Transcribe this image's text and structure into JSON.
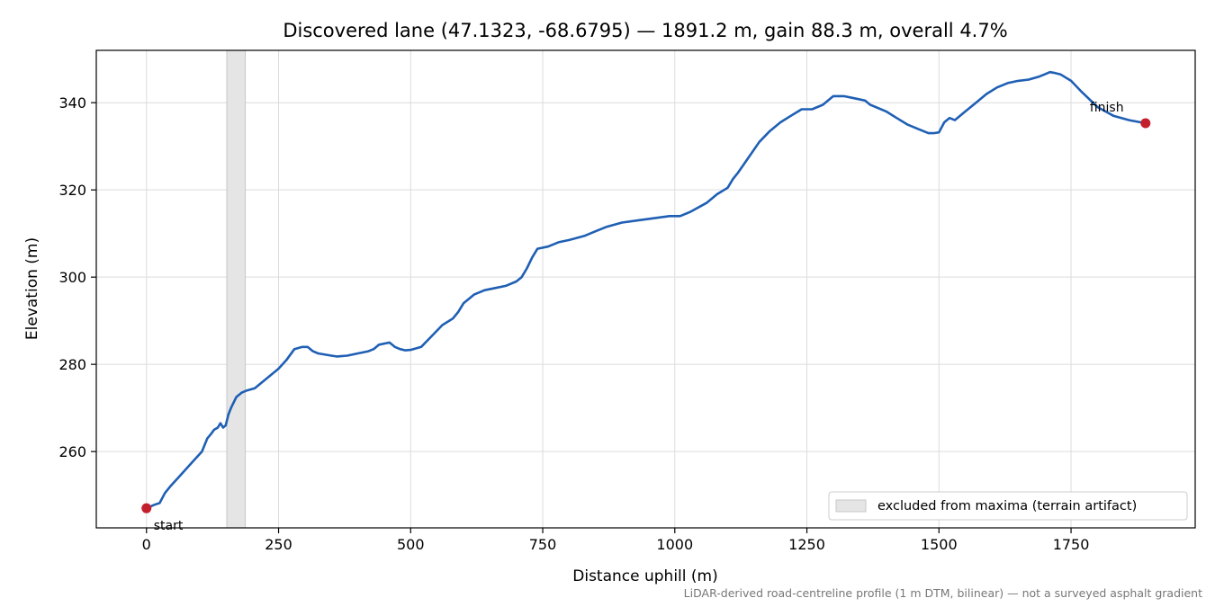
{
  "chart_data": {
    "type": "line",
    "title": "Discovered lane (47.1323, -68.6795) — 1891.2 m, gain 88.3 m, overall 4.7%",
    "xlabel": "Distance uphill (m)",
    "ylabel": "Elevation (m)",
    "xlim": [
      -95,
      1985
    ],
    "ylim": [
      242.5,
      352
    ],
    "x_ticks": [
      0,
      250,
      500,
      750,
      1000,
      1250,
      1500,
      1750
    ],
    "y_ticks": [
      260,
      280,
      300,
      320,
      340
    ],
    "grid": true,
    "legend_placement": "lower-right",
    "colors": {
      "line": "#1f5fb4",
      "markers": "#c41f2c",
      "excluded_band": "#e5e5e5"
    },
    "excluded_region": {
      "x_start": 152,
      "x_end": 187,
      "label": "excluded from maxima (terrain artifact)"
    },
    "series": [
      {
        "x": [
          0,
          15,
          25,
          35,
          45,
          60,
          75,
          90,
          105,
          115,
          122,
          128,
          135,
          140,
          145,
          150,
          155,
          160,
          170,
          180,
          190,
          205,
          220,
          235,
          250,
          265,
          280,
          295,
          305,
          315,
          325,
          340,
          350,
          360,
          380,
          400,
          420,
          430,
          440,
          460,
          470,
          480,
          490,
          500,
          520,
          540,
          560,
          580,
          590,
          600,
          620,
          640,
          660,
          680,
          700,
          710,
          720,
          730,
          740,
          760,
          780,
          800,
          830,
          850,
          870,
          900,
          930,
          960,
          990,
          1010,
          1030,
          1060,
          1080,
          1100,
          1110,
          1120,
          1140,
          1160,
          1180,
          1200,
          1220,
          1240,
          1260,
          1270,
          1280,
          1290,
          1300,
          1320,
          1340,
          1360,
          1370,
          1380,
          1400,
          1420,
          1440,
          1460,
          1480,
          1490,
          1500,
          1510,
          1520,
          1530,
          1550,
          1570,
          1590,
          1610,
          1630,
          1650,
          1670,
          1690,
          1700,
          1710,
          1720,
          1730,
          1750,
          1770,
          1800,
          1830,
          1860,
          1891
        ],
        "y": [
          247,
          247.8,
          248.2,
          250.5,
          252,
          254,
          256,
          258,
          260,
          263,
          264,
          265,
          265.5,
          266.5,
          265.5,
          266,
          268.5,
          270,
          272.5,
          273.5,
          274,
          274.5,
          276,
          277.5,
          279,
          281,
          283.5,
          284,
          284,
          283,
          282.5,
          282.2,
          282,
          281.8,
          282,
          282.5,
          283,
          283.5,
          284.5,
          285,
          284,
          283.5,
          283.2,
          283.3,
          284,
          286.5,
          289,
          290.5,
          292,
          294,
          296,
          297,
          297.5,
          298,
          299,
          300,
          302,
          304.5,
          306.5,
          307,
          308,
          308.5,
          309.5,
          310.5,
          311.5,
          312.5,
          313,
          313.5,
          314,
          314,
          315,
          317,
          319,
          320.5,
          322.5,
          324,
          327.5,
          331,
          333.5,
          335.5,
          337,
          338.5,
          338.5,
          339,
          339.5,
          340.5,
          341.5,
          341.5,
          341,
          340.5,
          339.5,
          339,
          338,
          336.5,
          335,
          334,
          333,
          333,
          333.2,
          335.5,
          336.5,
          336,
          338,
          340,
          342,
          343.5,
          344.5,
          345,
          345.3,
          346,
          346.5,
          347,
          346.8,
          346.5,
          345,
          342.5,
          339,
          337,
          336,
          335.3
        ]
      }
    ],
    "markers": [
      {
        "label": "start",
        "x": 0,
        "y": 247
      },
      {
        "label": "finish",
        "x": 1891,
        "y": 335.3
      }
    ],
    "footnote": "LiDAR-derived road-centreline profile (1 m DTM, bilinear) — not a surveyed asphalt gradient"
  }
}
